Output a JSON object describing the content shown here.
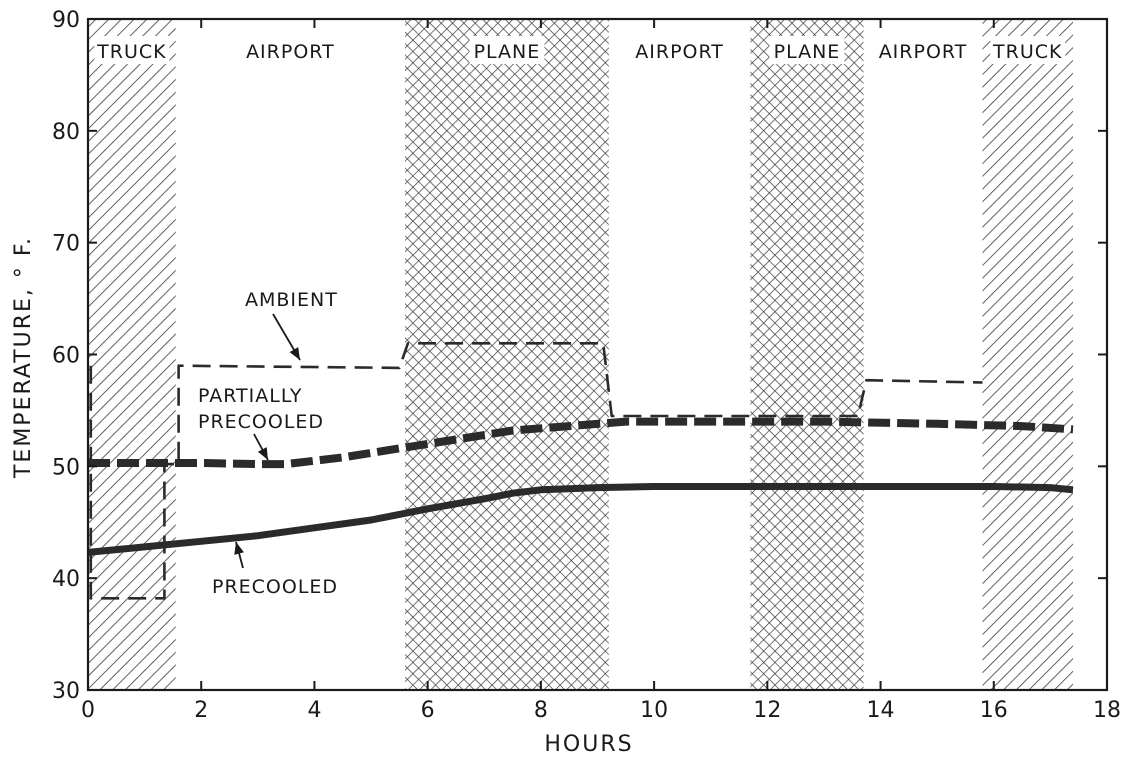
{
  "chart_data": {
    "type": "line",
    "xlabel": "HOURS",
    "ylabel": "TEMPERATURE, ° F.",
    "xlim": [
      0,
      18
    ],
    "ylim": [
      30,
      90
    ],
    "xticks": [
      0,
      2,
      4,
      6,
      8,
      10,
      12,
      14,
      16,
      18
    ],
    "yticks": [
      30,
      40,
      50,
      60,
      70,
      80,
      90
    ],
    "grid": false,
    "segments": [
      {
        "label": "TRUCK",
        "start": 0,
        "end": 1.55,
        "shading": "diagonal-hatch"
      },
      {
        "label": "AIRPORT",
        "start": 1.55,
        "end": 5.6,
        "shading": "none"
      },
      {
        "label": "PLANE",
        "start": 5.6,
        "end": 9.2,
        "shading": "cross-hatch"
      },
      {
        "label": "AIRPORT",
        "start": 9.2,
        "end": 11.7,
        "shading": "none"
      },
      {
        "label": "PLANE",
        "start": 11.7,
        "end": 13.7,
        "shading": "cross-hatch"
      },
      {
        "label": "AIRPORT",
        "start": 13.7,
        "end": 15.8,
        "shading": "none"
      },
      {
        "label": "TRUCK",
        "start": 15.8,
        "end": 17.4,
        "shading": "diagonal-hatch"
      }
    ],
    "series": [
      {
        "name": "AMBIENT",
        "style": "thin-dashed",
        "x": [
          0.05,
          0.05,
          1.35,
          1.35,
          1.6,
          1.6,
          5.5,
          5.65,
          9.1,
          9.25,
          13.6,
          13.75,
          15.8
        ],
        "y": [
          59,
          38.2,
          38.2,
          50.2,
          50.2,
          59,
          58.8,
          61,
          61,
          54.5,
          54.5,
          57.7,
          57.5
        ]
      },
      {
        "name": "PARTIALLY PRECOOLED",
        "style": "thick-dashed",
        "x": [
          0,
          1,
          2,
          3,
          3.5,
          4.5,
          5.5,
          6.5,
          7.5,
          8.5,
          9.5,
          11,
          13,
          15,
          16.5,
          17.4
        ],
        "y": [
          50.3,
          50.3,
          50.3,
          50.2,
          50.2,
          50.8,
          51.6,
          52.4,
          53.2,
          53.6,
          54,
          54,
          54,
          53.8,
          53.6,
          53.3
        ]
      },
      {
        "name": "PRECOOLED",
        "style": "thick-solid",
        "x": [
          0,
          1,
          2,
          3,
          4,
          5,
          6,
          7,
          7.5,
          8,
          8.5,
          9,
          10,
          12,
          14,
          16,
          17,
          17.4
        ],
        "y": [
          42.3,
          42.8,
          43.3,
          43.8,
          44.5,
          45.2,
          46.2,
          47.1,
          47.6,
          47.9,
          48,
          48.1,
          48.2,
          48.2,
          48.2,
          48.2,
          48.1,
          47.9
        ]
      }
    ],
    "annotations": [
      {
        "text": "AMBIENT",
        "lines": [
          "AMBIENT"
        ]
      },
      {
        "text": "PARTIALLY PRECOOLED",
        "lines": [
          "PARTIALLY",
          "PRECOOLED"
        ]
      },
      {
        "text": "PRECOOLED",
        "lines": [
          "PRECOOLED"
        ]
      }
    ]
  }
}
